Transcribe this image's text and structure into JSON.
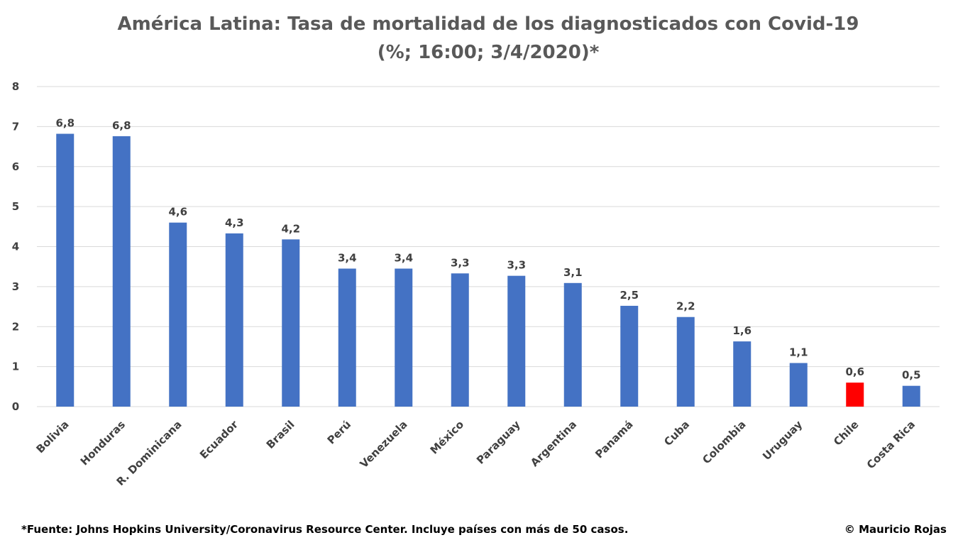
{
  "chart_data": {
    "type": "bar",
    "title": "América Latina: Tasa de mortalidad de los diagnosticados con Covid-19",
    "subtitle": "(%; 16:00; 3/4/2020)*",
    "xlabel": "",
    "ylabel": "",
    "ylim": [
      0,
      8
    ],
    "yticks": [
      "0",
      "1",
      "2",
      "3",
      "4",
      "5",
      "6",
      "7",
      "8"
    ],
    "grid": true,
    "legend": "none",
    "categories": [
      "Bolivia",
      "Honduras",
      "R. Dominicana",
      "Ecuador",
      "Brasil",
      "Perú",
      "Venezuela",
      "México",
      "Paraguay",
      "Argentina",
      "Panamá",
      "Cuba",
      "Colombia",
      "Uruguay",
      "Chile",
      "Costa Rica"
    ],
    "values": [
      6.82,
      6.76,
      4.6,
      4.33,
      4.18,
      3.45,
      3.45,
      3.33,
      3.27,
      3.09,
      2.52,
      2.24,
      1.63,
      1.09,
      0.6,
      0.52
    ],
    "data_labels": [
      "6,8",
      "6,8",
      "4,6",
      "4,3",
      "4,2",
      "3,4",
      "3,4",
      "3,3",
      "3,3",
      "3,1",
      "2,5",
      "2,2",
      "1,6",
      "1,1",
      "0,6",
      "0,5"
    ],
    "colors": [
      "#4472c4",
      "#4472c4",
      "#4472c4",
      "#4472c4",
      "#4472c4",
      "#4472c4",
      "#4472c4",
      "#4472c4",
      "#4472c4",
      "#4472c4",
      "#4472c4",
      "#4472c4",
      "#4472c4",
      "#4472c4",
      "#ff0000",
      "#4472c4"
    ],
    "default_bar_color": "#4472c4",
    "highlight_color": "#ff0000"
  },
  "footer": {
    "source": "*Fuente: Johns Hopkins University/Coronavirus Resource Center. Incluye países con más de 50 casos.",
    "credit": "© Mauricio Rojas"
  }
}
